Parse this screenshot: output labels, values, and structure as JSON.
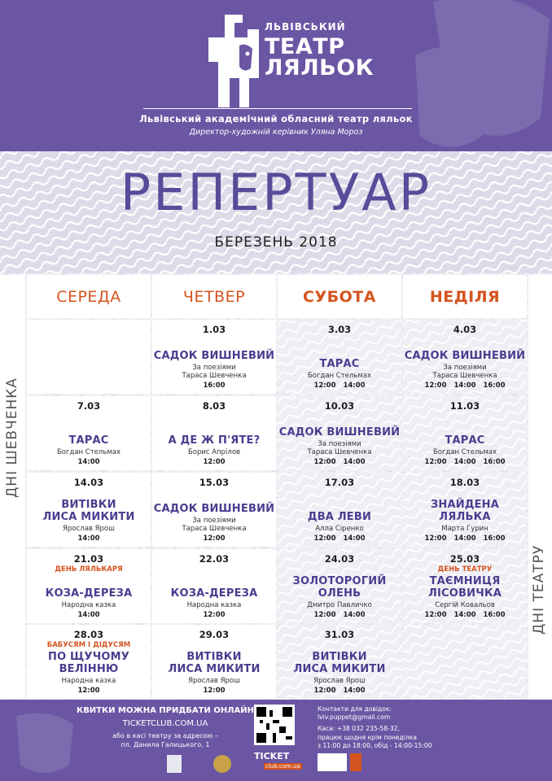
{
  "header": {
    "theater_small": "ЛЬВІВСЬКИЙ",
    "theater_big_1": "ТЕАТР",
    "theater_big_2": "ЛЯЛЬОК",
    "academic": "Львівський академічний обласний театр ляльок",
    "director": "Директор-художній керівник Уляна Мороз"
  },
  "title": "РЕПЕРТУАР",
  "month": "БЕРЕЗЕНЬ 2018",
  "days": [
    "СЕРЕДА",
    "ЧЕТВЕР",
    "СУБОТА",
    "НЕДІЛЯ"
  ],
  "side_labels": {
    "shevchenko": "ДНІ ШЕВЧЕНКА",
    "theatre": "ДНІ ТЕАТРУ"
  },
  "weeks": [
    [
      null,
      {
        "date": "1.03",
        "tag": "",
        "title": [
          "САДОК ВИШНЕВИЙ"
        ],
        "author": [
          "За поезіями",
          "Тараса Шевченка"
        ],
        "times": "16:00"
      },
      {
        "date": "3.03",
        "tag": "",
        "title": [
          "ТАРАС"
        ],
        "author": [
          "Богдан Стельмах"
        ],
        "times": "12:00 14:00"
      },
      {
        "date": "4.03",
        "tag": "",
        "title": [
          "САДОК ВИШНЕВИЙ"
        ],
        "author": [
          "За поезіями",
          "Тараса Шевченка"
        ],
        "times": "12:00 14:00 16:00"
      }
    ],
    [
      {
        "date": "7.03",
        "tag": "",
        "title": [
          "ТАРАС"
        ],
        "author": [
          "Богдан Стельмах"
        ],
        "times": "14:00"
      },
      {
        "date": "8.03",
        "tag": "",
        "title": [
          "А ДЕ Ж П'ЯТЕ?"
        ],
        "author": [
          "Борис Апрілов"
        ],
        "times": "12:00"
      },
      {
        "date": "10.03",
        "tag": "",
        "title": [
          "САДОК ВИШНЕВИЙ"
        ],
        "author": [
          "За поезіями",
          "Тараса Шевченка"
        ],
        "times": "12:00 14:00"
      },
      {
        "date": "11.03",
        "tag": "",
        "title": [
          "ТАРАС"
        ],
        "author": [
          "Богдан Стельмах"
        ],
        "times": "12:00 14:00 16:00"
      }
    ],
    [
      {
        "date": "14.03",
        "tag": "",
        "title": [
          "ВИТІВКИ",
          "ЛИСА МИКИТИ"
        ],
        "author": [
          "Ярослав Ярош"
        ],
        "times": "14:00"
      },
      {
        "date": "15.03",
        "tag": "",
        "title": [
          "САДОК ВИШНЕВИЙ"
        ],
        "author": [
          "За поезіями",
          "Тараса Шевченка"
        ],
        "times": "12:00"
      },
      {
        "date": "17.03",
        "tag": "",
        "title": [
          "ДВА ЛЕВИ"
        ],
        "author": [
          "Алла Сіренко"
        ],
        "times": "12:00 14:00"
      },
      {
        "date": "18.03",
        "tag": "",
        "title": [
          "ЗНАЙДЕНА",
          "ЛЯЛЬКА"
        ],
        "author": [
          "Марта Гурин"
        ],
        "times": "12:00 14:00 16:00"
      }
    ],
    [
      {
        "date": "21.03",
        "tag": "ДЕНЬ ЛЯЛЬКАРЯ",
        "title": [
          "КОЗА-ДЕРЕЗА"
        ],
        "author": [
          "Народна казка"
        ],
        "times": "14:00"
      },
      {
        "date": "22.03",
        "tag": "",
        "title": [
          "КОЗА-ДЕРЕЗА"
        ],
        "author": [
          "Народна казка"
        ],
        "times": "12:00"
      },
      {
        "date": "24.03",
        "tag": "",
        "title": [
          "ЗОЛОТОРОГИЙ",
          "ОЛЕНЬ"
        ],
        "author": [
          "Дмитро Павличко"
        ],
        "times": "12:00 14:00"
      },
      {
        "date": "25.03",
        "tag": "ДЕНЬ ТЕАТРУ",
        "title": [
          "ТАЄМНИЦЯ",
          "ЛІСОВИЧКА"
        ],
        "author": [
          "Сергій Ковальов"
        ],
        "times": "12:00 14:00 16:00"
      }
    ],
    [
      {
        "date": "28.03",
        "tag": "БАБУСЯМ І ДІДУСЯМ",
        "title": [
          "ПО ЩУЧОМУ",
          "ВЕЛІННЮ"
        ],
        "author": [
          "Народна казка"
        ],
        "times": "12:00"
      },
      {
        "date": "29.03",
        "tag": "",
        "title": [
          "ВИТІВКИ",
          "ЛИСА МИКИТИ"
        ],
        "author": [
          "Ярослав Ярош"
        ],
        "times": "12:00"
      },
      {
        "date": "31.03",
        "tag": "",
        "title": [
          "ВИТІВКИ",
          "ЛИСА МИКИТИ"
        ],
        "author": [
          "Ярослав Ярош"
        ],
        "times": "12:00 14:00"
      },
      null
    ]
  ],
  "footer": {
    "buy": "КВИТКИ МОЖНА ПРИДБАТИ ОНЛАЙН",
    "site": "TICKETCLUB.COM.UA",
    "kasa_1": "або в касі театру за адресою –",
    "kasa_2": "пл. Данила Галицького, 1",
    "ticket_word": "TICKET",
    "ticket_club": "club.com.ua",
    "contacts": [
      "Контакти для довідок:",
      "lviv.puppet@gmail.com",
      "",
      "Каса: +38 032 235-58-32,",
      "працює щодня крім понеділка",
      "з 11:00 до 18:00, обід - 14:00-15:00"
    ]
  },
  "colors": {
    "purple": "#6a56a3",
    "title_purple": "#5a4a99",
    "show_purple": "#4a3d8f",
    "orange": "#d4541f"
  }
}
